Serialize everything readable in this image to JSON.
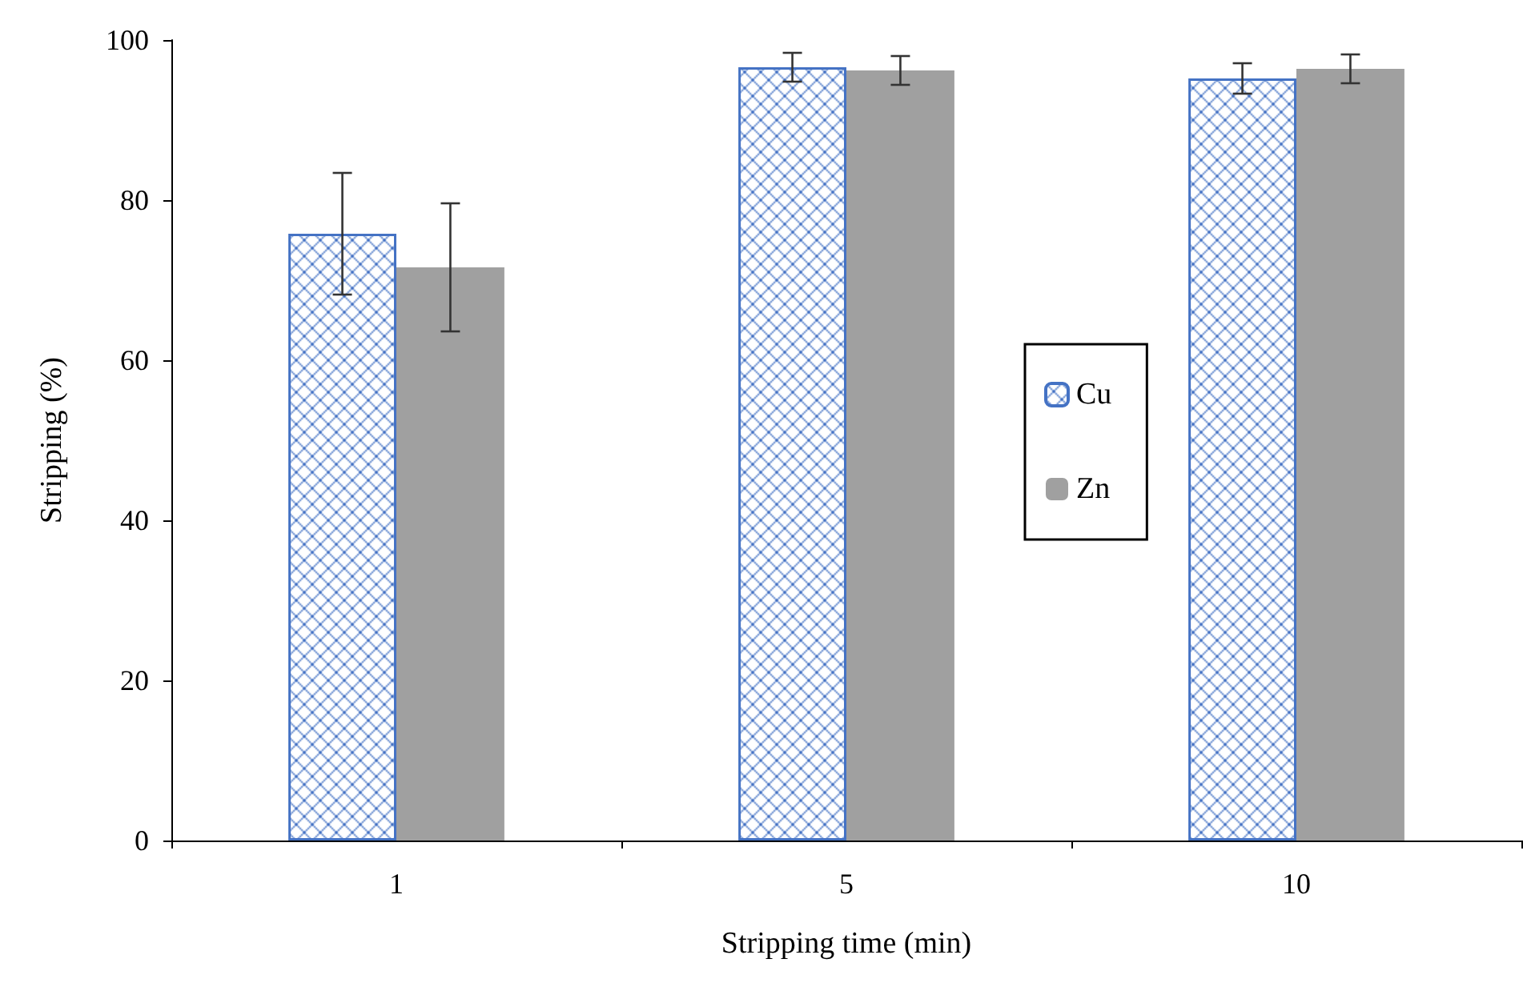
{
  "chart_data": {
    "type": "bar",
    "xlabel": "Stripping time (min)",
    "ylabel": "Stripping (%)",
    "categories": [
      "1",
      "5",
      "10"
    ],
    "series": [
      {
        "name": "Cu",
        "color": "#4472c4",
        "values": [
          75.8,
          96.6,
          95.2
        ],
        "errors": [
          7.6,
          1.8,
          1.9
        ]
      },
      {
        "name": "Zn",
        "color": "#a0a0a0",
        "values": [
          71.6,
          96.2,
          96.4
        ],
        "errors": [
          8,
          1.8,
          1.8
        ]
      }
    ],
    "ylim": [
      0,
      100
    ],
    "yticks": [
      0,
      20,
      40,
      60,
      80,
      100
    ],
    "grid": false,
    "legend": "right"
  }
}
